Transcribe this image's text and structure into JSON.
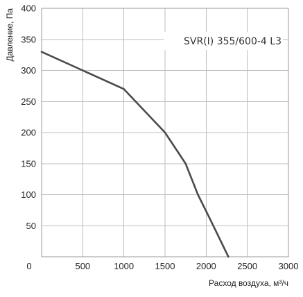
{
  "chart_data": {
    "type": "line",
    "title": "SVR(I) 355/600-4 L3",
    "xlabel": "Расход воздуха, м³/ч",
    "ylabel": "Давление, Па",
    "xlim": [
      0,
      3000
    ],
    "ylim": [
      0,
      400
    ],
    "x_ticks": [
      0,
      500,
      1000,
      1500,
      2000,
      2500,
      3000
    ],
    "y_ticks": [
      0,
      50,
      100,
      150,
      200,
      250,
      300,
      350,
      400
    ],
    "y_tick_labels": [
      "",
      "50",
      "100",
      "150",
      "200",
      "250",
      "300",
      "350",
      "400"
    ],
    "grid": true,
    "series": [
      {
        "color": "#4a4a4a",
        "x": [
          0,
          500,
          1000,
          1500,
          1750,
          1900,
          2050,
          2270
        ],
        "y": [
          330,
          300,
          270,
          200,
          150,
          100,
          60,
          0
        ]
      }
    ]
  }
}
